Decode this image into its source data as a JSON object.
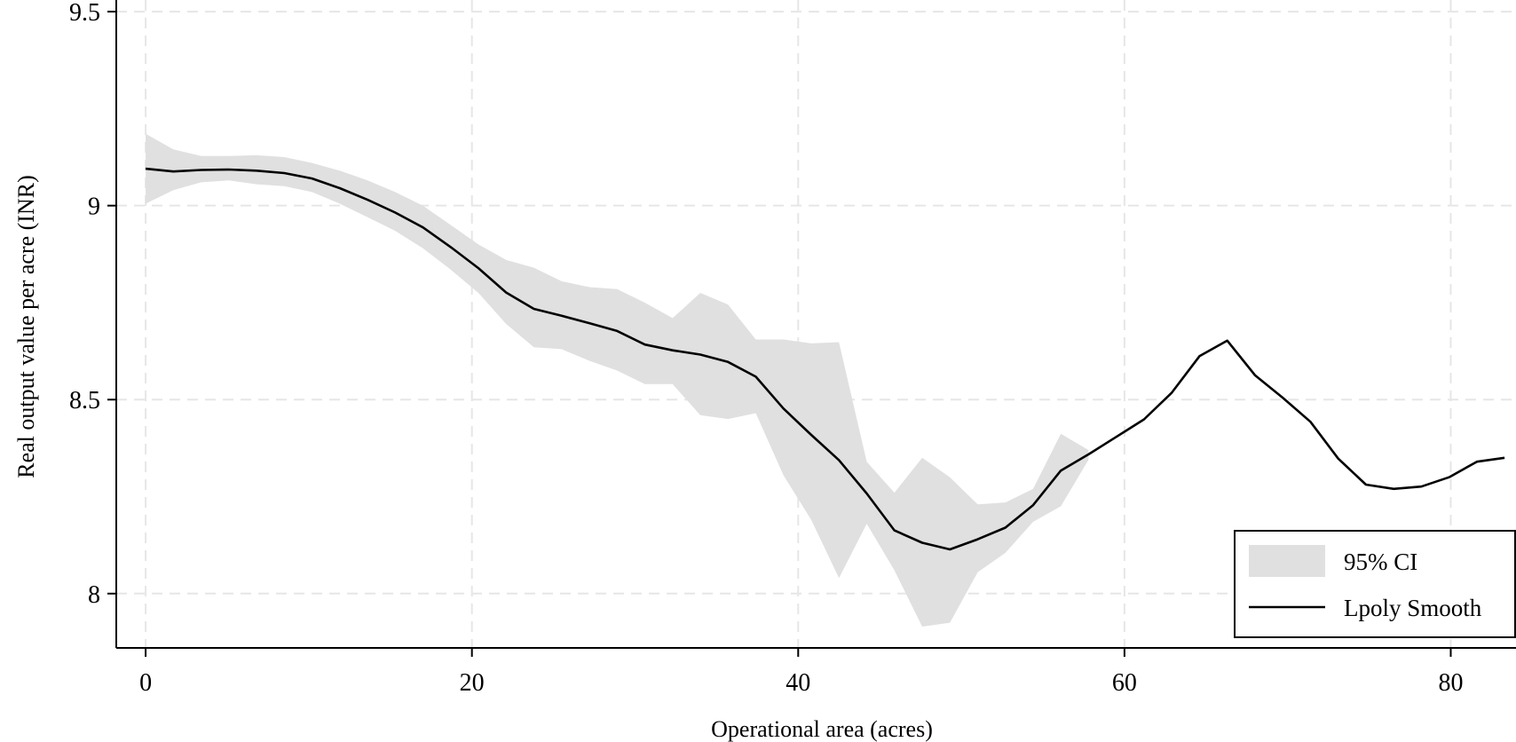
{
  "chart_data": {
    "type": "line",
    "title": "",
    "xlabel": "Operational area (acres)",
    "ylabel": "Real output value per acre (INR)",
    "xlim": [
      -1.8,
      84
    ],
    "ylim": [
      7.86,
      9.53
    ],
    "xticks": [
      0,
      20,
      40,
      60,
      80
    ],
    "xtick_labels": [
      "0",
      "20",
      "40",
      "60",
      "80"
    ],
    "yticks": [
      8,
      8.5,
      9,
      9.5
    ],
    "ytick_labels": [
      "8",
      "8.5",
      "9",
      "9.5"
    ],
    "grid": true,
    "legend_position": "bottom-right",
    "series": [
      {
        "name": "Lpoly Smooth",
        "kind": "line",
        "color": "#000000",
        "x": [
          0,
          1.7,
          3.4,
          5.1,
          6.8,
          8.5,
          10.2,
          11.9,
          13.6,
          15.3,
          17.0,
          18.7,
          20.4,
          22.1,
          23.8,
          25.5,
          27.2,
          28.9,
          30.6,
          32.3,
          34.0,
          35.7,
          37.4,
          39.1,
          40.8,
          42.5,
          44.2,
          45.9,
          47.6,
          49.3,
          51.0,
          52.7,
          54.4,
          56.1,
          57.8,
          59.5,
          61.2,
          62.9,
          64.6,
          66.3,
          68.0,
          69.7,
          71.4,
          73.1,
          74.8,
          76.5,
          78.2,
          79.9,
          81.6,
          83.3
        ],
        "y": [
          9.095,
          9.088,
          9.092,
          9.093,
          9.09,
          9.084,
          9.07,
          9.045,
          9.015,
          8.982,
          8.944,
          8.893,
          8.839,
          8.776,
          8.734,
          8.716,
          8.697,
          8.677,
          8.642,
          8.627,
          8.616,
          8.597,
          8.559,
          8.477,
          8.409,
          8.344,
          8.258,
          8.163,
          8.131,
          8.114,
          8.14,
          8.17,
          8.228,
          8.317,
          8.359,
          8.404,
          8.449,
          8.518,
          8.612,
          8.652,
          8.563,
          8.505,
          8.443,
          8.348,
          8.281,
          8.27,
          8.276,
          8.3,
          8.34,
          8.35
        ]
      },
      {
        "name": "95% CI",
        "kind": "band",
        "color": "#e0e0e0",
        "x": [
          0,
          1.7,
          3.4,
          5.1,
          6.8,
          8.5,
          10.2,
          11.9,
          13.6,
          15.3,
          17.0,
          18.7,
          20.4,
          22.1,
          23.8,
          25.5,
          27.2,
          28.9,
          30.6,
          32.3,
          34.0,
          35.7,
          37.4,
          39.1,
          40.8,
          42.5,
          44.2,
          45.9,
          47.6,
          49.3,
          51.0,
          52.7,
          54.4,
          56.1,
          57.8
        ],
        "upper": [
          9.185,
          9.145,
          9.128,
          9.128,
          9.13,
          9.125,
          9.11,
          9.09,
          9.065,
          9.035,
          9.0,
          8.95,
          8.9,
          8.86,
          8.84,
          8.805,
          8.79,
          8.785,
          8.75,
          8.71,
          8.775,
          8.745,
          8.655,
          8.655,
          8.645,
          8.648,
          8.34,
          8.26,
          8.35,
          8.3,
          8.23,
          8.235,
          8.27,
          8.412,
          8.37
        ],
        "lower": [
          9.005,
          9.04,
          9.06,
          9.065,
          9.055,
          9.05,
          9.035,
          9.005,
          8.97,
          8.935,
          8.89,
          8.835,
          8.775,
          8.695,
          8.635,
          8.63,
          8.6,
          8.575,
          8.54,
          8.54,
          8.46,
          8.45,
          8.465,
          8.305,
          8.19,
          8.04,
          8.18,
          8.06,
          7.915,
          7.925,
          8.055,
          8.105,
          8.185,
          8.225,
          8.345
        ]
      }
    ]
  }
}
